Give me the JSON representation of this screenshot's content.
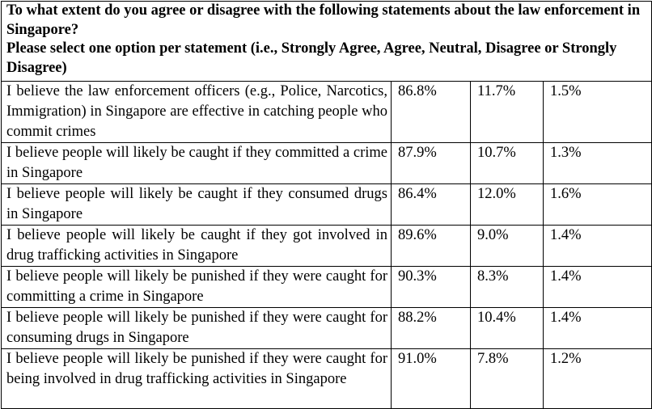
{
  "header": {
    "question": "To what extent do you agree or disagree with the following statements about the law enforcement in Singapore?",
    "instruction": "Please select one option per statement (i.e., Strongly Agree, Agree, Neutral, Disagree or Strongly Disagree)"
  },
  "rows": [
    {
      "statement": "I believe the law enforcement officers (e.g., Police, Narcotics, Immigration) in Singapore are effective in catching people who commit crimes",
      "col1": "86.8%",
      "col2": "11.7%",
      "col3": "1.5%"
    },
    {
      "statement": "I believe people will likely be caught if they committed a crime in Singapore",
      "col1": "87.9%",
      "col2": "10.7%",
      "col3": "1.3%"
    },
    {
      "statement": "I believe people will likely be caught if they consumed drugs in Singapore",
      "col1": "86.4%",
      "col2": "12.0%",
      "col3": "1.6%"
    },
    {
      "statement": "I believe people will likely be caught if they got involved in drug trafficking activities in Singapore",
      "col1": "89.6%",
      "col2": "9.0%",
      "col3": "1.4%"
    },
    {
      "statement": "I believe people will likely be punished if they were caught for committing a crime in Singapore",
      "col1": "90.3%",
      "col2": "8.3%",
      "col3": "1.4%"
    },
    {
      "statement": "I believe people will likely be punished if they were caught for consuming drugs in Singapore",
      "col1": "88.2%",
      "col2": "10.4%",
      "col3": "1.4%"
    },
    {
      "statement": "I believe people will likely be punished if they were caught for being involved in drug trafficking activities in Singapore",
      "col1": "91.0%",
      "col2": "7.8%",
      "col3": "1.2%"
    }
  ]
}
